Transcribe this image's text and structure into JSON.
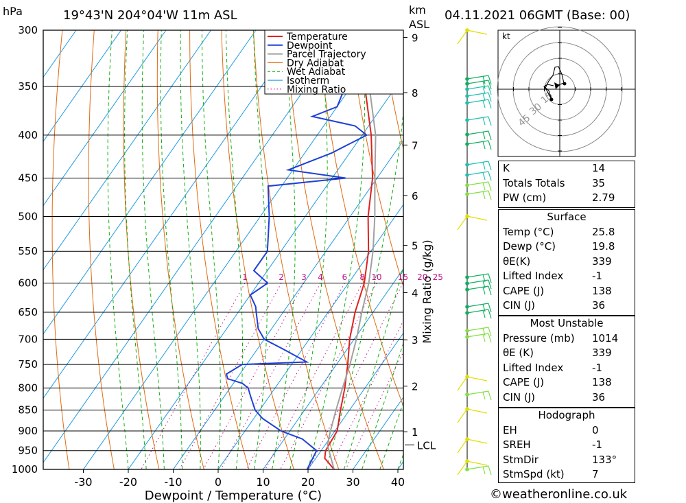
{
  "header": {
    "unit_left": "hPa",
    "location": "19°43'N  204°04'W  11m  ASL",
    "unit_right_top": "km",
    "unit_right_bottom": "ASL",
    "datetime": "04.11.2021  06GMT  (Base: 00)"
  },
  "colors": {
    "temperature": "#e02020",
    "dewpoint": "#1f3fd8",
    "parcel": "#a0a0a0",
    "dry_adiabat": "#e06a10",
    "wet_adiabat": "#10b010",
    "isotherm": "#1e9ae0",
    "mixing_ratio": "#c0108a"
  },
  "chart_data": {
    "type": "line",
    "title": "",
    "xlabel": "Dewpoint / Temperature (°C)",
    "ylabel": "Mixing Ratio (g/kg)",
    "xlim": [
      -40,
      40
    ],
    "ylim": [
      1000,
      300
    ],
    "y_scale": "log-pressure (skew-T)",
    "pressure_ticks": [
      "300",
      "350",
      "400",
      "450",
      "500",
      "550",
      "600",
      "650",
      "700",
      "750",
      "800",
      "850",
      "900",
      "950",
      "1000"
    ],
    "temp_ticks": [
      "-30",
      "-20",
      "-10",
      "0",
      "10",
      "20",
      "30",
      "40"
    ],
    "height_ticks_km": [
      "1",
      "2",
      "3",
      "4",
      "5",
      "6",
      "7",
      "8",
      "9"
    ],
    "height_tick_pressures": [
      902,
      796,
      701,
      616,
      541,
      472,
      411,
      356,
      306
    ],
    "lcl_label": "LCL",
    "lcl_pressure": 935,
    "mixing_ratio_labels": [
      "1",
      "2",
      "3",
      "4",
      "6",
      "8",
      "10",
      "15",
      "20",
      "25"
    ],
    "legend": {
      "position": "top-right",
      "entries": [
        "Temperature",
        "Dewpoint",
        "Parcel Trajectory",
        "Dry Adiabat",
        "Wet Adiabat",
        "Isotherm",
        "Mixing Ratio"
      ]
    },
    "series": [
      {
        "name": "Temperature",
        "points": [
          [
            1000,
            25.8
          ],
          [
            970,
            22
          ],
          [
            950,
            21
          ],
          [
            900,
            20.5
          ],
          [
            850,
            18
          ],
          [
            800,
            15.5
          ],
          [
            750,
            12.5
          ],
          [
            700,
            9
          ],
          [
            650,
            6
          ],
          [
            600,
            3.5
          ],
          [
            550,
            -0.5
          ],
          [
            500,
            -6
          ],
          [
            450,
            -11
          ],
          [
            400,
            -18
          ],
          [
            350,
            -27
          ],
          [
            330,
            -32
          ],
          [
            300,
            -40
          ]
        ]
      },
      {
        "name": "Dewpoint",
        "points": [
          [
            1000,
            19.8
          ],
          [
            950,
            19
          ],
          [
            920,
            14
          ],
          [
            900,
            8
          ],
          [
            870,
            2
          ],
          [
            850,
            -1
          ],
          [
            820,
            -4
          ],
          [
            800,
            -6
          ],
          [
            790,
            -8
          ],
          [
            780,
            -12
          ],
          [
            770,
            -13
          ],
          [
            750,
            -11
          ],
          [
            745,
            3
          ],
          [
            720,
            -4
          ],
          [
            700,
            -10
          ],
          [
            680,
            -13
          ],
          [
            650,
            -16
          ],
          [
            640,
            -17
          ],
          [
            620,
            -20
          ],
          [
            600,
            -18
          ],
          [
            580,
            -23
          ],
          [
            550,
            -23
          ],
          [
            500,
            -28
          ],
          [
            460,
            -33
          ],
          [
            450,
            -17
          ],
          [
            440,
            -31
          ],
          [
            420,
            -24
          ],
          [
            400,
            -19
          ],
          [
            390,
            -23
          ],
          [
            380,
            -34
          ],
          [
            370,
            -30
          ],
          [
            355,
            -31
          ],
          [
            350,
            -29
          ],
          [
            330,
            -36
          ],
          [
            320,
            -46
          ],
          [
            300,
            -46
          ]
        ]
      },
      {
        "name": "Parcel Trajectory",
        "points": [
          [
            1000,
            25.8
          ],
          [
            935,
            20.5
          ],
          [
            900,
            19
          ],
          [
            850,
            17
          ],
          [
            800,
            15
          ],
          [
            750,
            13
          ],
          [
            700,
            10.5
          ],
          [
            650,
            7.5
          ],
          [
            600,
            4.5
          ],
          [
            550,
            0.5
          ],
          [
            500,
            -4.5
          ],
          [
            450,
            -10.5
          ],
          [
            400,
            -17
          ],
          [
            350,
            -26
          ],
          [
            300,
            -37
          ]
        ]
      }
    ]
  },
  "hodograph": {
    "unit": "kt",
    "ring_labels": [
      "15",
      "30",
      "45"
    ]
  },
  "indices": {
    "top": [
      {
        "label": "K",
        "value": "14"
      },
      {
        "label": "Totals Totals",
        "value": "35"
      },
      {
        "label": "PW (cm)",
        "value": "2.79"
      }
    ],
    "surface": {
      "title": "Surface",
      "rows": [
        {
          "label": "Temp (°C)",
          "value": "25.8"
        },
        {
          "label": "Dewp (°C)",
          "value": "19.8"
        },
        {
          "label": "θE(K)",
          "value": "339"
        },
        {
          "label": "Lifted Index",
          "value": "-1"
        },
        {
          "label": "CAPE (J)",
          "value": "138"
        },
        {
          "label": "CIN (J)",
          "value": "36"
        }
      ]
    },
    "most_unstable": {
      "title": "Most Unstable",
      "rows": [
        {
          "label": "Pressure (mb)",
          "value": "1014"
        },
        {
          "label": "θE (K)",
          "value": "339"
        },
        {
          "label": "Lifted Index",
          "value": "-1"
        },
        {
          "label": "CAPE (J)",
          "value": "138"
        },
        {
          "label": "CIN (J)",
          "value": "36"
        }
      ]
    },
    "hodograph": {
      "title": "Hodograph",
      "rows": [
        {
          "label": "EH",
          "value": "0"
        },
        {
          "label": "SREH",
          "value": "-1"
        },
        {
          "label": "StmDir",
          "value": "133°"
        },
        {
          "label": "StmSpd (kt)",
          "value": "7"
        }
      ]
    }
  },
  "footer": {
    "credit": "©weatheronline.co.uk"
  }
}
